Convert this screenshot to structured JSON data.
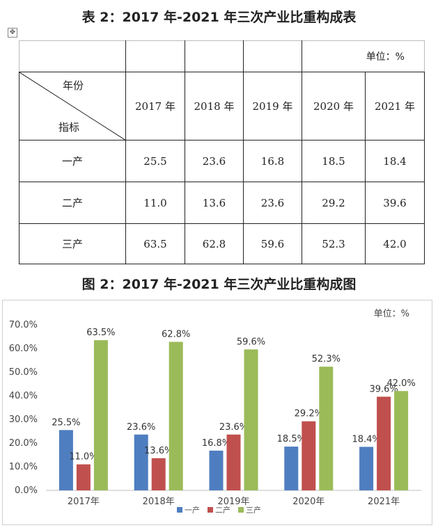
{
  "table": {
    "title": "表 2：2017 年-2021 年三次产业比重构成表",
    "unit": "单位：%",
    "header_row_label": "年份",
    "header_col_label": "指标",
    "years": [
      "2017 年",
      "2018 年",
      "2019 年",
      "2020 年",
      "2021 年"
    ],
    "rows": [
      {
        "label": "一产",
        "values": [
          "25.5",
          "23.6",
          "16.8",
          "18.5",
          "18.4"
        ]
      },
      {
        "label": "二产",
        "values": [
          "11.0",
          "13.6",
          "23.6",
          "29.2",
          "39.6"
        ]
      },
      {
        "label": "三产",
        "values": [
          "63.5",
          "62.8",
          "59.6",
          "52.3",
          "42.0"
        ]
      }
    ]
  },
  "chart_title": "图 2：2017 年-2021 年三次产业比重构成图",
  "chart_data": {
    "type": "bar",
    "unit_label": "单位：%",
    "categories": [
      "2017年",
      "2018年",
      "2019年",
      "2020年",
      "2021年"
    ],
    "series": [
      {
        "name": "一产",
        "values": [
          25.5,
          23.6,
          16.8,
          18.5,
          18.4
        ],
        "labels": [
          "25.5%",
          "23.6%",
          "16.8%",
          "18.5%",
          "18.4%"
        ],
        "color": "#4f7ec0"
      },
      {
        "name": "二产",
        "values": [
          11.0,
          13.6,
          23.6,
          29.2,
          39.6
        ],
        "labels": [
          "11.0%",
          "13.6%",
          "23.6%",
          "29.2%",
          "39.6%"
        ],
        "color": "#c0504d"
      },
      {
        "name": "三产",
        "values": [
          63.5,
          62.8,
          59.6,
          52.3,
          42.0
        ],
        "labels": [
          "63.5%",
          "62.8%",
          "59.6%",
          "52.3%",
          "42.0%"
        ],
        "color": "#9bbb59"
      }
    ],
    "ylim": [
      0,
      70
    ],
    "yticks": [
      "0.0%",
      "10.0%",
      "20.0%",
      "30.0%",
      "40.0%",
      "50.0%",
      "60.0%",
      "70.0%"
    ],
    "ytick_values": [
      0,
      10,
      20,
      30,
      40,
      50,
      60,
      70
    ],
    "grid": false,
    "legend_position": "bottom"
  }
}
